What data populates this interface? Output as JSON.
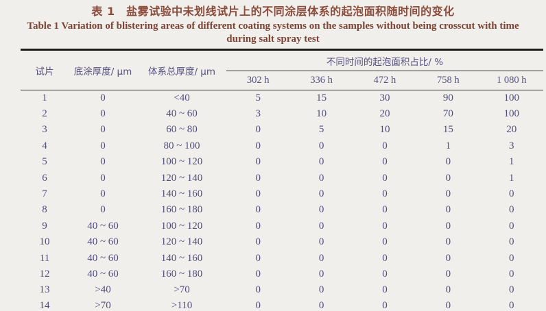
{
  "title": {
    "zh": "表 1　盐雾试验中未划线试片上的不同涂层体系的起泡面积随时间的变化",
    "en_line1": "Table 1   Variation of blistering areas of different coating systems on the samples without being crosscut with time",
    "en_line2": "during salt spray test"
  },
  "table": {
    "headers": {
      "sample": "试片",
      "primer_thickness": "底涂厚度/ μm",
      "total_thickness": "体系总厚度/ μm",
      "group": "不同时间的起泡面积占比/ %",
      "times": [
        "302 h",
        "336 h",
        "472 h",
        "758 h",
        "1 080 h"
      ]
    },
    "rows": [
      [
        "1",
        "0",
        "<40",
        "5",
        "15",
        "30",
        "90",
        "100"
      ],
      [
        "2",
        "0",
        "40 ~ 60",
        "3",
        "10",
        "20",
        "70",
        "100"
      ],
      [
        "3",
        "0",
        "60 ~ 80",
        "0",
        "5",
        "10",
        "15",
        "20"
      ],
      [
        "4",
        "0",
        "80 ~ 100",
        "0",
        "0",
        "0",
        "1",
        "3"
      ],
      [
        "5",
        "0",
        "100 ~ 120",
        "0",
        "0",
        "0",
        "0",
        "1"
      ],
      [
        "6",
        "0",
        "120 ~ 140",
        "0",
        "0",
        "0",
        "0",
        "1"
      ],
      [
        "7",
        "0",
        "140 ~ 160",
        "0",
        "0",
        "0",
        "0",
        "0"
      ],
      [
        "8",
        "0",
        "160 ~ 180",
        "0",
        "0",
        "0",
        "0",
        "0"
      ],
      [
        "9",
        "40 ~ 60",
        "100 ~ 120",
        "0",
        "0",
        "0",
        "0",
        "0"
      ],
      [
        "10",
        "40 ~ 60",
        "120 ~ 140",
        "0",
        "0",
        "0",
        "0",
        "0"
      ],
      [
        "11",
        "40 ~ 60",
        "140 ~ 160",
        "0",
        "0",
        "0",
        "0",
        "0"
      ],
      [
        "12",
        "40 ~ 60",
        "160 ~ 180",
        "0",
        "0",
        "0",
        "0",
        "0"
      ],
      [
        "13",
        ">40",
        ">70",
        "0",
        "0",
        "0",
        "0",
        "0"
      ],
      [
        "14",
        ">70",
        ">110",
        "0",
        "0",
        "0",
        "0",
        "0"
      ]
    ]
  },
  "colors": {
    "page_background": "#f1efec",
    "title_text": "#8b4c3b",
    "table_text": "#514d7d",
    "rule": "#1b1b1b"
  }
}
